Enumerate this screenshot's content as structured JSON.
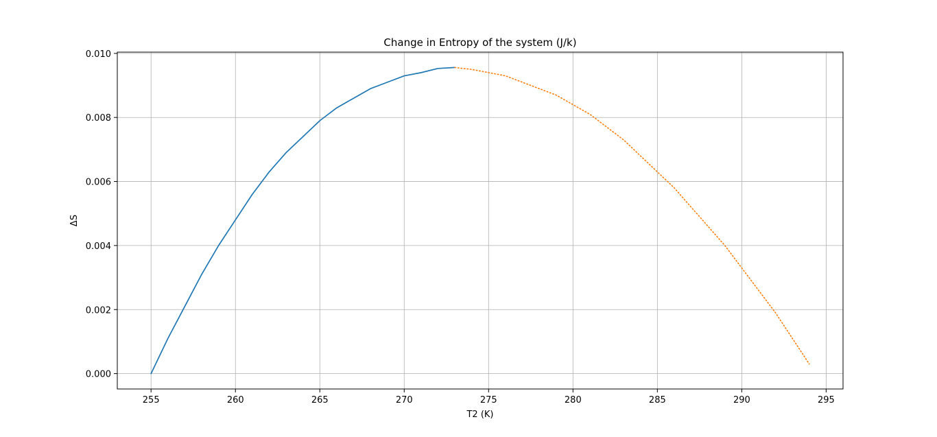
{
  "chart_data": {
    "type": "line",
    "title": "Change in Entropy of the system (J/k)",
    "xlabel": "T2 (K)",
    "ylabel": "ΔS",
    "xlim": [
      253,
      296
    ],
    "ylim": [
      -0.00048,
      0.01004
    ],
    "x_ticks": [
      255,
      260,
      265,
      270,
      275,
      280,
      285,
      290,
      295
    ],
    "y_ticks": [
      0.0,
      0.002,
      0.004,
      0.006,
      0.008,
      0.01
    ],
    "y_tick_labels": [
      "0.000",
      "0.002",
      "0.004",
      "0.006",
      "0.008",
      "0.010"
    ],
    "grid": true,
    "series": [
      {
        "color": "#1f77b4",
        "style": "solid",
        "x": [
          255,
          256,
          257,
          258,
          259,
          260,
          261,
          262,
          263,
          264,
          265,
          266,
          267,
          268,
          269,
          270,
          271,
          272,
          273
        ],
        "y": [
          0.0,
          0.0011,
          0.0021,
          0.0031,
          0.004,
          0.0048,
          0.0056,
          0.0063,
          0.0069,
          0.0074,
          0.0079,
          0.0083,
          0.0086,
          0.0089,
          0.0091,
          0.0093,
          0.0094,
          0.00953,
          0.00956
        ]
      },
      {
        "color": "#ff7f0e",
        "style": "dotted",
        "x": [
          273,
          274,
          275,
          276,
          277,
          278,
          279,
          280,
          281,
          282,
          283,
          284,
          285,
          286,
          287,
          288,
          289,
          290,
          291,
          292,
          293,
          294
        ],
        "y": [
          0.00956,
          0.0095,
          0.0094,
          0.0093,
          0.0091,
          0.0089,
          0.0087,
          0.0084,
          0.0081,
          0.0077,
          0.0073,
          0.0068,
          0.0063,
          0.0058,
          0.0052,
          0.0046,
          0.004,
          0.0033,
          0.0026,
          0.0019,
          0.0011,
          0.0003
        ]
      }
    ]
  }
}
